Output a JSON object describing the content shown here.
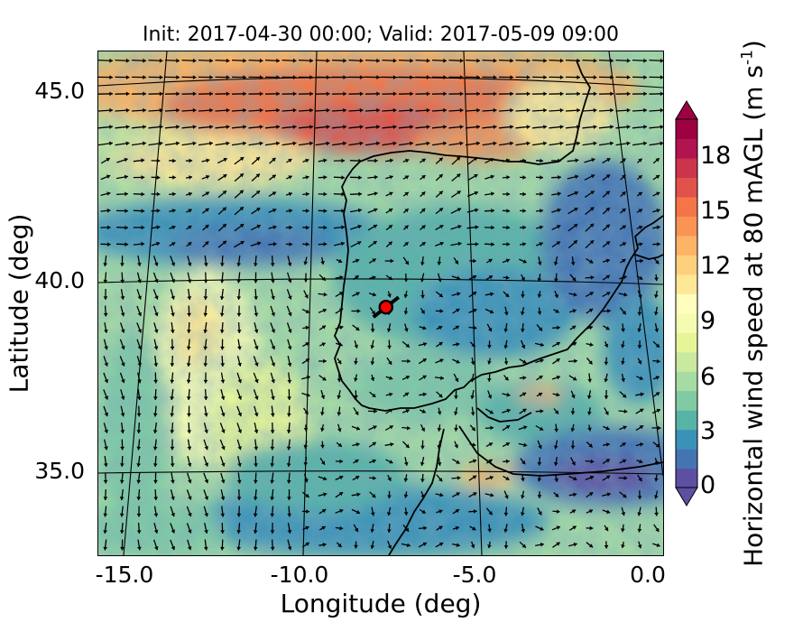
{
  "title": "Init: 2017-04-30 00:00; Valid: 2017-05-09 09:00",
  "xlabel": "Longitude (deg)",
  "ylabel": "Latitude (deg)",
  "x_ticks": [
    "-15.0",
    "-10.0",
    "-5.0",
    "0.0"
  ],
  "y_ticks": [
    "45.0",
    "40.0",
    "35.0"
  ],
  "colorbar": {
    "label_main": "Horizontal wind speed at 80 mAGL (m s",
    "label_exp": "-1",
    "label_close": ")",
    "ticks": [
      "0",
      "3",
      "6",
      "9",
      "12",
      "15",
      "18"
    ],
    "extend": "both",
    "colors": [
      "#5e4fa2",
      "#4574b3",
      "#3b92b8",
      "#58b3a7",
      "#80cba4",
      "#a6dba4",
      "#c9e99e",
      "#e6f598",
      "#f6fbb2",
      "#fffebe",
      "#fee796",
      "#fed07e",
      "#fdb465",
      "#f99455",
      "#f47547",
      "#e1524a",
      "#cc344e",
      "#b1144e",
      "#9e0142"
    ]
  },
  "map": {
    "longitude_range": [
      -16,
      0.3
    ],
    "latitude_range": [
      32.7,
      46.1
    ],
    "marker": {
      "lon": -7.7,
      "lat": 39.3,
      "color": "#ff0000"
    }
  }
}
